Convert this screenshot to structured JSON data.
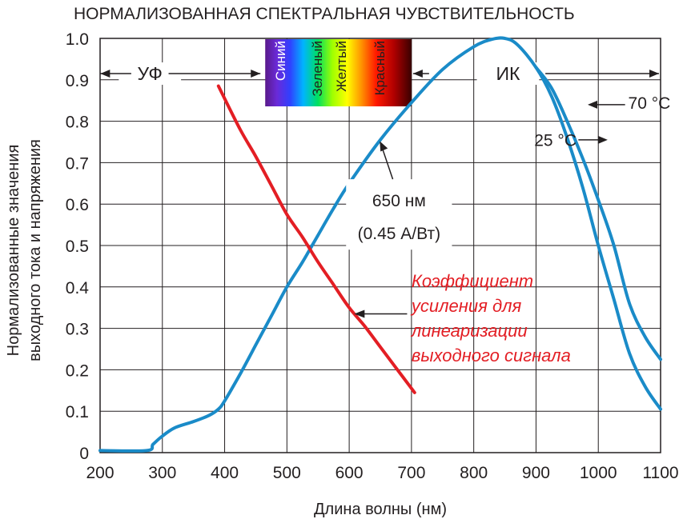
{
  "chart_data": {
    "type": "line",
    "title": "НОРМАЛИЗОВАННАЯ СПЕКТРАЛЬНАЯ ЧУВСТВИТЕЛЬНОСТЬ",
    "xlabel": "Длина волны (нм)",
    "ylabel_lines": [
      "Нормализованные значения",
      "выходного тока и напряжения"
    ],
    "xlim": [
      200,
      1100
    ],
    "ylim": [
      0,
      1.0
    ],
    "x_ticks": [
      "200",
      "300",
      "400",
      "500",
      "600",
      "700",
      "800",
      "900",
      "1000",
      "1100"
    ],
    "y_ticks": [
      "0",
      "0.1",
      "0.2",
      "0.3",
      "0.4",
      "0.5",
      "0.6",
      "0.7",
      "0.8",
      "0.9",
      "1.0"
    ],
    "grid": true,
    "colors": {
      "response": "#1a8bc8",
      "gain": "#e31e24",
      "grid": "#231f20",
      "text": "#231f20"
    },
    "regions": [
      {
        "label": "УФ",
        "x_start": 200,
        "x_end": 460
      },
      {
        "label": "ИК",
        "x_start": 700,
        "x_end": 1100
      }
    ],
    "spectrum": {
      "x_start": 460,
      "x_end": 700,
      "labels": [
        "Синий",
        "Зеленый",
        "Желтый",
        "Красный"
      ]
    },
    "series": [
      {
        "id": "response-25",
        "label": "25 °C",
        "color": "#1a8bc8",
        "points": [
          [
            200,
            0.005
          ],
          [
            275,
            0.005
          ],
          [
            285,
            0.02
          ],
          [
            300,
            0.04
          ],
          [
            320,
            0.06
          ],
          [
            350,
            0.075
          ],
          [
            375,
            0.09
          ],
          [
            390,
            0.105
          ],
          [
            400,
            0.125
          ],
          [
            425,
            0.19
          ],
          [
            450,
            0.26
          ],
          [
            475,
            0.33
          ],
          [
            500,
            0.4
          ],
          [
            525,
            0.46
          ],
          [
            550,
            0.525
          ],
          [
            575,
            0.59
          ],
          [
            600,
            0.65
          ],
          [
            650,
            0.755
          ],
          [
            700,
            0.845
          ],
          [
            750,
            0.925
          ],
          [
            800,
            0.98
          ],
          [
            830,
            0.998
          ],
          [
            850,
            1.0
          ],
          [
            870,
            0.985
          ],
          [
            900,
            0.93
          ],
          [
            925,
            0.86
          ],
          [
            950,
            0.76
          ],
          [
            975,
            0.64
          ],
          [
            1000,
            0.5
          ],
          [
            1025,
            0.37
          ],
          [
            1050,
            0.24
          ],
          [
            1075,
            0.16
          ],
          [
            1100,
            0.105
          ]
        ]
      },
      {
        "id": "response-70",
        "label": "70 °C",
        "color": "#1a8bc8",
        "points": [
          [
            900,
            0.93
          ],
          [
            925,
            0.88
          ],
          [
            950,
            0.8
          ],
          [
            975,
            0.71
          ],
          [
            1000,
            0.61
          ],
          [
            1025,
            0.5
          ],
          [
            1050,
            0.36
          ],
          [
            1075,
            0.28
          ],
          [
            1100,
            0.225
          ]
        ]
      },
      {
        "id": "gain",
        "label": "Коэффициент усиления для линеаризации выходного сигнала",
        "color": "#e31e24",
        "points": [
          [
            390,
            0.885
          ],
          [
            425,
            0.78
          ],
          [
            450,
            0.715
          ],
          [
            475,
            0.645
          ],
          [
            500,
            0.575
          ],
          [
            525,
            0.52
          ],
          [
            550,
            0.46
          ],
          [
            575,
            0.405
          ],
          [
            600,
            0.35
          ],
          [
            625,
            0.305
          ],
          [
            650,
            0.255
          ],
          [
            675,
            0.205
          ],
          [
            705,
            0.145
          ]
        ]
      }
    ],
    "annotations": {
      "marker_650_line1": "650 нм",
      "marker_650_line2": "(0.45 А/Вт)",
      "gain_lines": [
        "Коэффициент",
        "усиления для",
        "линеаризации",
        "выходного сигнала"
      ],
      "temp_25": "25 °C",
      "temp_70": "70 °C"
    }
  }
}
